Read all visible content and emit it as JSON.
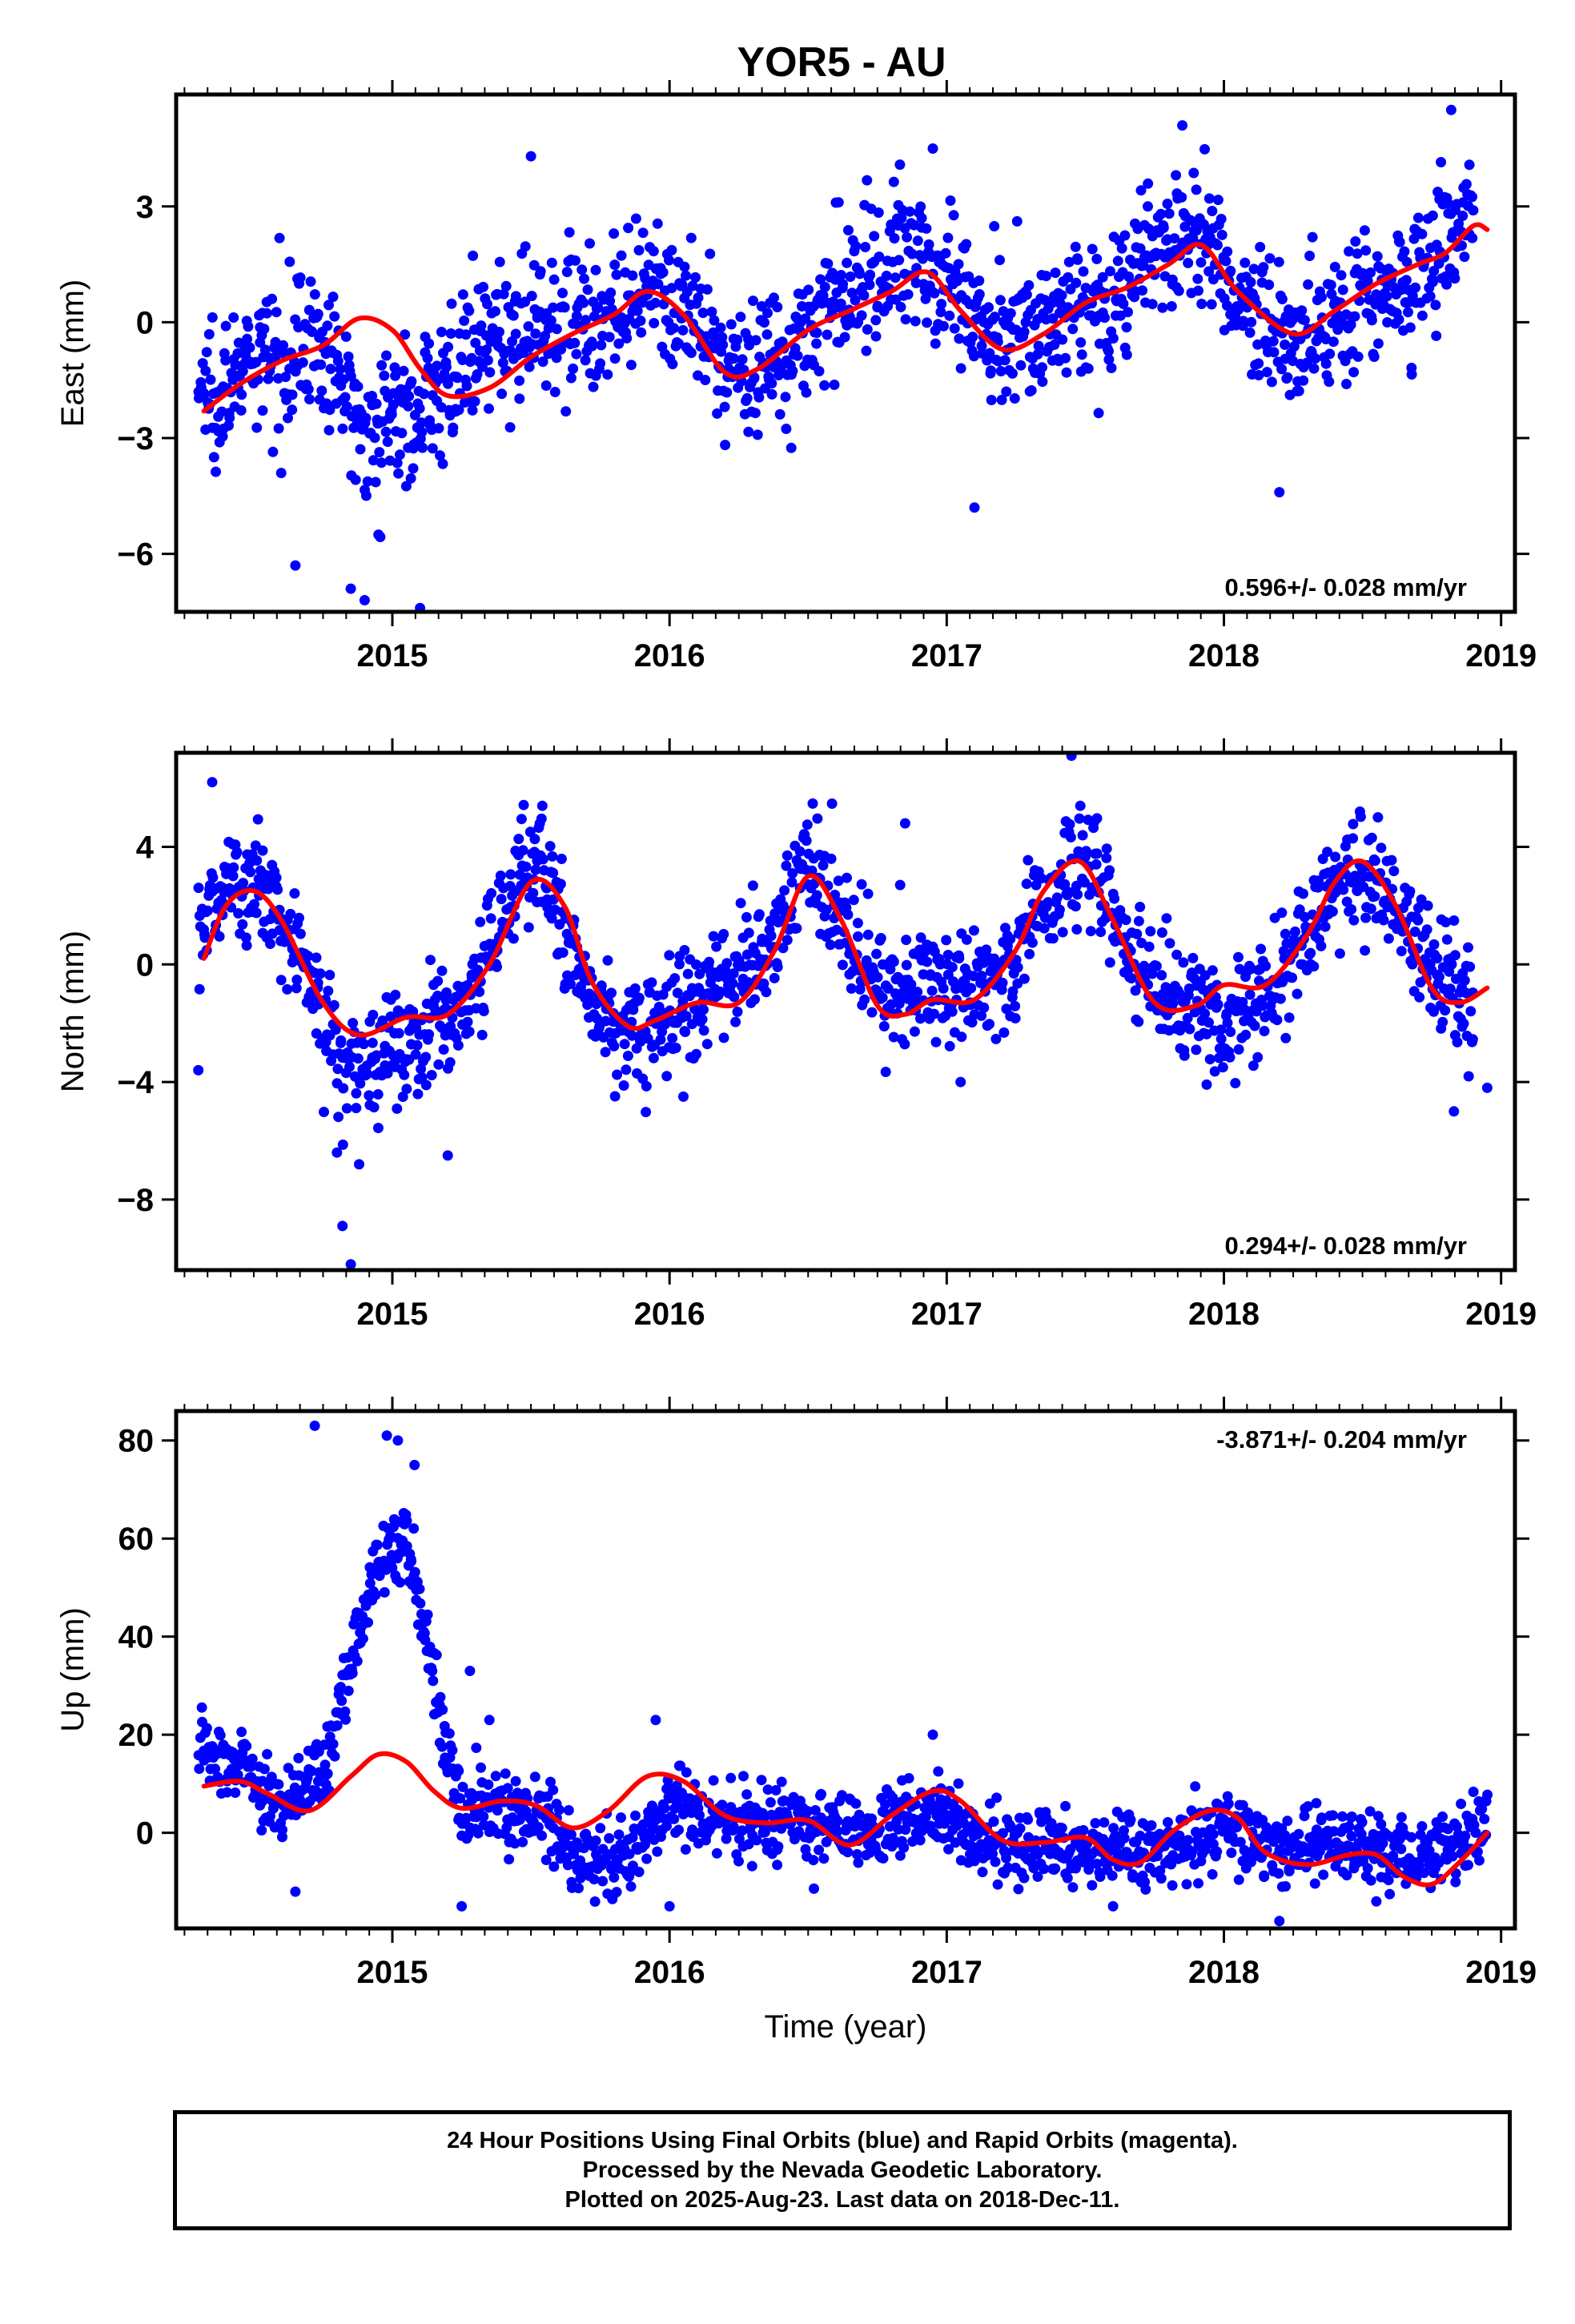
{
  "title": "YOR5 - AU",
  "colors": {
    "final_orbits": "#0000ff",
    "model": "#ff0000",
    "frame": "#000000"
  },
  "chart_data": [
    {
      "type": "scatter",
      "component": "east",
      "ylabel": "East (mm)",
      "xlabel": "",
      "rate_label": "0.596+/- 0.028 mm/yr",
      "xlim": [
        2014.22,
        2019.05
      ],
      "ylim": [
        -7.5,
        5.9
      ],
      "xticks": [
        2015,
        2016,
        2017,
        2018,
        2019
      ],
      "yticks": [
        -6,
        -3,
        0,
        3
      ],
      "yticks_labels": [
        "−6",
        "−3",
        "0",
        "3"
      ],
      "model_curve": [
        [
          2014.32,
          -2.3
        ],
        [
          2014.45,
          -1.6
        ],
        [
          2014.6,
          -1.0
        ],
        [
          2014.75,
          -0.6
        ],
        [
          2014.88,
          0.1
        ],
        [
          2015.0,
          -0.2
        ],
        [
          2015.1,
          -1.2
        ],
        [
          2015.2,
          -1.9
        ],
        [
          2015.35,
          -1.7
        ],
        [
          2015.5,
          -0.9
        ],
        [
          2015.65,
          -0.3
        ],
        [
          2015.8,
          0.2
        ],
        [
          2015.92,
          0.8
        ],
        [
          2016.05,
          0.2
        ],
        [
          2016.2,
          -1.3
        ],
        [
          2016.32,
          -1.2
        ],
        [
          2016.5,
          -0.2
        ],
        [
          2016.65,
          0.3
        ],
        [
          2016.8,
          0.8
        ],
        [
          2016.93,
          1.3
        ],
        [
          2017.05,
          0.3
        ],
        [
          2017.2,
          -0.7
        ],
        [
          2017.35,
          -0.3
        ],
        [
          2017.5,
          0.5
        ],
        [
          2017.65,
          0.9
        ],
        [
          2017.8,
          1.5
        ],
        [
          2017.92,
          2.0
        ],
        [
          2018.05,
          0.8
        ],
        [
          2018.25,
          -0.3
        ],
        [
          2018.4,
          0.3
        ],
        [
          2018.55,
          1.0
        ],
        [
          2018.7,
          1.5
        ],
        [
          2018.8,
          1.8
        ],
        [
          2018.9,
          2.5
        ],
        [
          2018.95,
          2.4
        ]
      ],
      "scatter_anchors": [
        [
          2014.3,
          -1.8
        ],
        [
          2014.5,
          -1.2
        ],
        [
          2014.7,
          -0.3
        ],
        [
          2014.9,
          -2.6
        ],
        [
          2015.05,
          -2.4
        ],
        [
          2015.2,
          -1.5
        ],
        [
          2015.4,
          -0.3
        ],
        [
          2015.6,
          0.2
        ],
        [
          2015.8,
          0.1
        ],
        [
          2016.0,
          0.8
        ],
        [
          2016.2,
          -1.2
        ],
        [
          2016.4,
          -0.9
        ],
        [
          2016.6,
          0.4
        ],
        [
          2016.8,
          1.8
        ],
        [
          2017.0,
          1.2
        ],
        [
          2017.2,
          -0.4
        ],
        [
          2017.4,
          0.2
        ],
        [
          2017.6,
          0.5
        ],
        [
          2017.8,
          2.2
        ],
        [
          2017.95,
          1.8
        ],
        [
          2018.1,
          0.1
        ],
        [
          2018.3,
          -0.3
        ],
        [
          2018.5,
          0.5
        ],
        [
          2018.7,
          1.2
        ],
        [
          2018.9,
          3.0
        ]
      ],
      "scatter_spread": 1.2,
      "scatter_outliers": [
        [
          2014.65,
          -6.3
        ],
        [
          2014.9,
          -7.2
        ],
        [
          2015.1,
          -7.4
        ],
        [
          2014.95,
          -5.5
        ],
        [
          2014.85,
          -6.9
        ],
        [
          2015.5,
          4.3
        ],
        [
          2016.95,
          4.5
        ],
        [
          2018.82,
          5.5
        ],
        [
          2017.1,
          -4.8
        ],
        [
          2018.2,
          -4.4
        ],
        [
          2016.6,
          3.1
        ],
        [
          2017.85,
          5.1
        ]
      ]
    },
    {
      "type": "scatter",
      "component": "north",
      "ylabel": "North (mm)",
      "xlabel": "",
      "rate_label": "0.294+/- 0.028 mm/yr",
      "xlim": [
        2014.22,
        2019.05
      ],
      "ylim": [
        -10.4,
        7.2
      ],
      "xticks": [
        2015,
        2016,
        2017,
        2018,
        2019
      ],
      "yticks": [
        -8,
        -4,
        0,
        4
      ],
      "yticks_labels": [
        "−8",
        "−4",
        "0",
        "4"
      ],
      "model_curve": [
        [
          2014.32,
          0.2
        ],
        [
          2014.4,
          2.0
        ],
        [
          2014.5,
          2.5
        ],
        [
          2014.6,
          1.5
        ],
        [
          2014.75,
          -1.3
        ],
        [
          2014.88,
          -2.4
        ],
        [
          2015.05,
          -1.8
        ],
        [
          2015.2,
          -1.7
        ],
        [
          2015.35,
          0.0
        ],
        [
          2015.5,
          2.8
        ],
        [
          2015.62,
          2.0
        ],
        [
          2015.72,
          -0.6
        ],
        [
          2015.85,
          -2.1
        ],
        [
          2015.95,
          -1.9
        ],
        [
          2016.1,
          -1.3
        ],
        [
          2016.25,
          -1.3
        ],
        [
          2016.38,
          0.5
        ],
        [
          2016.5,
          3.0
        ],
        [
          2016.62,
          1.5
        ],
        [
          2016.75,
          -1.4
        ],
        [
          2016.85,
          -1.7
        ],
        [
          2016.95,
          -1.2
        ],
        [
          2017.1,
          -1.2
        ],
        [
          2017.25,
          0.5
        ],
        [
          2017.35,
          2.5
        ],
        [
          2017.48,
          3.5
        ],
        [
          2017.6,
          1.5
        ],
        [
          2017.75,
          -1.3
        ],
        [
          2017.9,
          -1.4
        ],
        [
          2018.0,
          -0.7
        ],
        [
          2018.15,
          -0.7
        ],
        [
          2018.3,
          1.0
        ],
        [
          2018.4,
          2.8
        ],
        [
          2018.5,
          3.5
        ],
        [
          2018.62,
          2.0
        ],
        [
          2018.75,
          -0.8
        ],
        [
          2018.85,
          -1.3
        ],
        [
          2018.95,
          -0.8
        ]
      ],
      "scatter_anchors": [
        [
          2014.3,
          1.0
        ],
        [
          2014.4,
          3.0
        ],
        [
          2014.55,
          2.5
        ],
        [
          2014.7,
          -0.5
        ],
        [
          2014.85,
          -3.5
        ],
        [
          2015.0,
          -2.8
        ],
        [
          2015.15,
          -2.2
        ],
        [
          2015.3,
          -1.0
        ],
        [
          2015.45,
          3.0
        ],
        [
          2015.55,
          3.5
        ],
        [
          2015.7,
          -1.0
        ],
        [
          2015.85,
          -2.5
        ],
        [
          2016.0,
          -1.5
        ],
        [
          2016.2,
          -0.5
        ],
        [
          2016.35,
          0.5
        ],
        [
          2016.5,
          3.5
        ],
        [
          2016.65,
          0.5
        ],
        [
          2016.8,
          -1.0
        ],
        [
          2017.0,
          -0.5
        ],
        [
          2017.2,
          -0.5
        ],
        [
          2017.4,
          2.5
        ],
        [
          2017.5,
          4.0
        ],
        [
          2017.65,
          0.5
        ],
        [
          2017.85,
          -1.5
        ],
        [
          2018.0,
          -2.0
        ],
        [
          2018.2,
          -0.5
        ],
        [
          2018.4,
          2.5
        ],
        [
          2018.5,
          3.5
        ],
        [
          2018.7,
          0.5
        ],
        [
          2018.9,
          -1.5
        ]
      ],
      "scatter_spread": 1.3,
      "scatter_outliers": [
        [
          2014.35,
          6.2
        ],
        [
          2014.82,
          -8.9
        ],
        [
          2014.85,
          -10.2
        ],
        [
          2014.88,
          -6.8
        ],
        [
          2015.2,
          -6.5
        ],
        [
          2014.8,
          -6.4
        ],
        [
          2017.45,
          7.1
        ],
        [
          2016.85,
          4.8
        ],
        [
          2016.05,
          -4.5
        ],
        [
          2017.05,
          -4.0
        ],
        [
          2018.83,
          -5.0
        ],
        [
          2018.95,
          -4.2
        ],
        [
          2014.3,
          -3.6
        ]
      ]
    },
    {
      "type": "scatter",
      "component": "up",
      "ylabel": "Up (mm)",
      "xlabel": "Time (year)",
      "rate_label": "-3.871+/- 0.204 mm/yr",
      "xlim": [
        2014.22,
        2019.05
      ],
      "ylim": [
        -19.5,
        86
      ],
      "xticks": [
        2015,
        2016,
        2017,
        2018,
        2019
      ],
      "yticks": [
        0,
        20,
        40,
        60,
        80
      ],
      "yticks_labels": [
        "0",
        "20",
        "40",
        "60",
        "80"
      ],
      "model_curve": [
        [
          2014.32,
          9.5
        ],
        [
          2014.45,
          10.5
        ],
        [
          2014.55,
          8.0
        ],
        [
          2014.7,
          4.5
        ],
        [
          2014.85,
          11.5
        ],
        [
          2014.95,
          16.0
        ],
        [
          2015.05,
          14.5
        ],
        [
          2015.15,
          8.5
        ],
        [
          2015.25,
          5.0
        ],
        [
          2015.4,
          6.5
        ],
        [
          2015.52,
          5.5
        ],
        [
          2015.65,
          1.0
        ],
        [
          2015.78,
          4.5
        ],
        [
          2015.92,
          11.5
        ],
        [
          2016.05,
          10.5
        ],
        [
          2016.2,
          3.5
        ],
        [
          2016.35,
          2.0
        ],
        [
          2016.5,
          2.5
        ],
        [
          2016.65,
          -2.5
        ],
        [
          2016.8,
          3.5
        ],
        [
          2016.95,
          8.5
        ],
        [
          2017.05,
          6.5
        ],
        [
          2017.2,
          -1.5
        ],
        [
          2017.35,
          -2.0
        ],
        [
          2017.5,
          -1.0
        ],
        [
          2017.6,
          -5.5
        ],
        [
          2017.7,
          -6.0
        ],
        [
          2017.82,
          0.5
        ],
        [
          2017.95,
          4.5
        ],
        [
          2018.05,
          3.0
        ],
        [
          2018.15,
          -4.0
        ],
        [
          2018.3,
          -6.5
        ],
        [
          2018.45,
          -4.5
        ],
        [
          2018.55,
          -4.5
        ],
        [
          2018.65,
          -9.0
        ],
        [
          2018.75,
          -10.5
        ],
        [
          2018.85,
          -6.0
        ],
        [
          2018.95,
          0.0
        ]
      ],
      "scatter_anchors": [
        [
          2014.3,
          18.0
        ],
        [
          2014.45,
          14.0
        ],
        [
          2014.6,
          5.0
        ],
        [
          2014.75,
          12.0
        ],
        [
          2014.85,
          35.0
        ],
        [
          2014.95,
          55.0
        ],
        [
          2015.05,
          60.0
        ],
        [
          2015.12,
          40.0
        ],
        [
          2015.25,
          4.0
        ],
        [
          2015.4,
          5.0
        ],
        [
          2015.55,
          3.0
        ],
        [
          2015.7,
          -6.0
        ],
        [
          2015.85,
          -5.0
        ],
        [
          2016.0,
          5.0
        ],
        [
          2016.2,
          3.0
        ],
        [
          2016.4,
          3.0
        ],
        [
          2016.6,
          0.0
        ],
        [
          2016.8,
          1.0
        ],
        [
          2016.95,
          5.0
        ],
        [
          2017.2,
          -4.0
        ],
        [
          2017.4,
          -3.0
        ],
        [
          2017.6,
          -5.0
        ],
        [
          2017.8,
          -3.0
        ],
        [
          2018.0,
          1.0
        ],
        [
          2018.2,
          -4.0
        ],
        [
          2018.4,
          -2.0
        ],
        [
          2018.6,
          -5.0
        ],
        [
          2018.8,
          -3.0
        ],
        [
          2018.95,
          3.0
        ]
      ],
      "scatter_spread": 5.0,
      "scatter_outliers": [
        [
          2014.72,
          83.0
        ],
        [
          2014.98,
          81.0
        ],
        [
          2015.02,
          80.0
        ],
        [
          2015.08,
          75.0
        ],
        [
          2015.28,
          33.0
        ],
        [
          2015.35,
          23.0
        ],
        [
          2015.95,
          23.0
        ],
        [
          2016.95,
          20.0
        ],
        [
          2014.65,
          -12.0
        ],
        [
          2015.25,
          -15.0
        ],
        [
          2016.0,
          -15.0
        ],
        [
          2018.2,
          -18.0
        ],
        [
          2017.6,
          -15.0
        ],
        [
          2018.55,
          -14.0
        ]
      ]
    }
  ],
  "caption": {
    "line1": "24 Hour Positions Using Final Orbits (blue) and Rapid Orbits (magenta).",
    "line2": "Processed by the Nevada Geodetic Laboratory.",
    "line3": "Plotted on 2025-Aug-23. Last data on 2018-Dec-11."
  }
}
